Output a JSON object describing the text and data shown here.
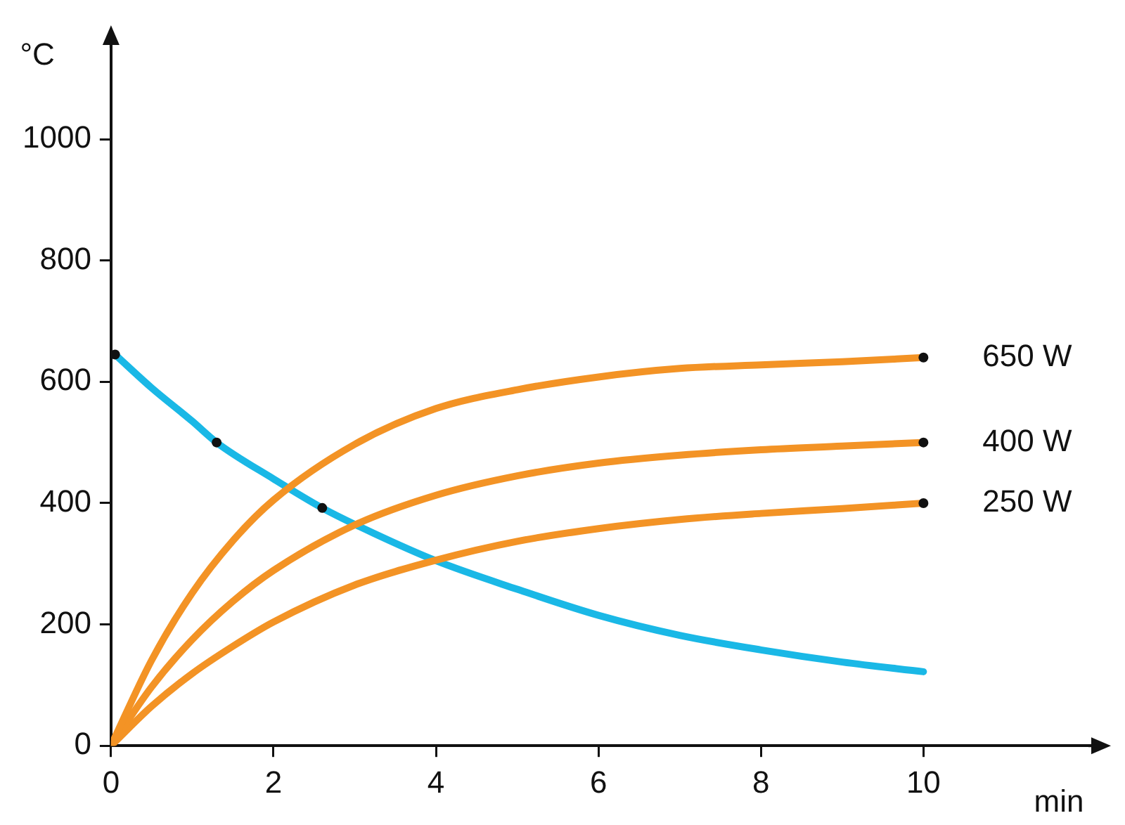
{
  "chart_data": {
    "type": "line",
    "xlabel": "min",
    "ylabel": "°C",
    "xlim": [
      0,
      12.1
    ],
    "ylim": [
      0,
      1160
    ],
    "xticks": [
      0,
      2,
      4,
      6,
      8,
      10
    ],
    "yticks": [
      0,
      200,
      400,
      600,
      800,
      1000
    ],
    "grid": false,
    "legend": false,
    "marker": "none",
    "series": [
      {
        "name": "650 W",
        "color": "#f39325",
        "x": [
          0,
          0.5,
          1,
          1.5,
          2,
          3,
          4,
          5,
          6,
          7,
          8,
          9,
          10
        ],
        "values": [
          0,
          141,
          252,
          338,
          405,
          497,
          556,
          587,
          608,
          622,
          628,
          633,
          640
        ]
      },
      {
        "name": "400 W",
        "color": "#f39325",
        "x": [
          0,
          0.5,
          1,
          1.5,
          2,
          3,
          4,
          5,
          6,
          7,
          8,
          9,
          10
        ],
        "values": [
          0,
          97,
          175,
          238,
          289,
          364,
          413,
          445,
          466,
          479,
          488,
          494,
          500
        ]
      },
      {
        "name": "250 W",
        "color": "#f39325",
        "x": [
          0,
          0.5,
          1,
          1.5,
          2,
          3,
          4,
          5,
          6,
          7,
          8,
          9,
          10
        ],
        "values": [
          0,
          65,
          119,
          164,
          204,
          265,
          306,
          337,
          358,
          373,
          383,
          391,
          400
        ]
      },
      {
        "color": "#1ab8e6",
        "x": [
          0.05,
          0.5,
          1,
          1.3,
          2,
          2.6,
          3,
          4,
          5,
          6,
          7,
          8,
          9,
          10
        ],
        "values": [
          645,
          590,
          535,
          500,
          440,
          392,
          365,
          305,
          258,
          215,
          182,
          158,
          138,
          122
        ]
      },
      {
        "type": "scatter",
        "color": "#111111",
        "marker": "circle",
        "x": [
          0.05,
          1.3,
          2.6,
          10,
          10,
          10
        ],
        "values": [
          645,
          500,
          392,
          640,
          500,
          400
        ]
      }
    ]
  }
}
